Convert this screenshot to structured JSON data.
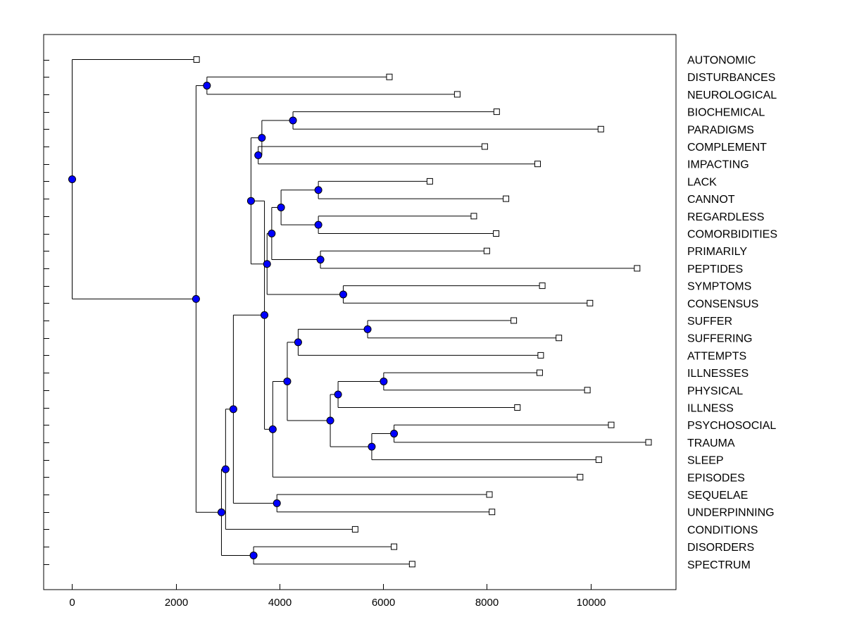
{
  "chart_data": {
    "type": "dendrogram",
    "title": "",
    "xlabel": "",
    "ylabel": "",
    "xlim": [
      -550,
      11650
    ],
    "xticks": [
      0,
      2000,
      4000,
      6000,
      8000,
      10000
    ],
    "grid": false,
    "leaves": [
      {
        "label": "AUTONOMIC",
        "x": 2400
      },
      {
        "label": "DISTURBANCES",
        "x": 6120
      },
      {
        "label": "NEUROLOGICAL",
        "x": 7430
      },
      {
        "label": "BIOCHEMICAL",
        "x": 8190
      },
      {
        "label": "PARADIGMS",
        "x": 10200
      },
      {
        "label": "COMPLEMENT",
        "x": 7960
      },
      {
        "label": "IMPACTING",
        "x": 8980
      },
      {
        "label": "LACK",
        "x": 6900
      },
      {
        "label": "CANNOT",
        "x": 8370
      },
      {
        "label": "REGARDLESS",
        "x": 7750
      },
      {
        "label": "COMORBIDITIES",
        "x": 8180
      },
      {
        "label": "PRIMARILY",
        "x": 8000
      },
      {
        "label": "PEPTIDES",
        "x": 10900
      },
      {
        "label": "SYMPTOMS",
        "x": 9070
      },
      {
        "label": "CONSENSUS",
        "x": 9990
      },
      {
        "label": "SUFFER",
        "x": 8520
      },
      {
        "label": "SUFFERING",
        "x": 9390
      },
      {
        "label": "ATTEMPTS",
        "x": 9040
      },
      {
        "label": "ILLNESSES",
        "x": 9020
      },
      {
        "label": "PHYSICAL",
        "x": 9940
      },
      {
        "label": "ILLNESS",
        "x": 8590
      },
      {
        "label": "PSYCHOSOCIAL",
        "x": 10400
      },
      {
        "label": "TRAUMA",
        "x": 11120
      },
      {
        "label": "SLEEP",
        "x": 10160
      },
      {
        "label": "EPISODES",
        "x": 9800
      },
      {
        "label": "SEQUELAE",
        "x": 8050
      },
      {
        "label": "UNDERPINNING",
        "x": 8100
      },
      {
        "label": "CONDITIONS",
        "x": 5460
      },
      {
        "label": "DISORDERS",
        "x": 6210
      },
      {
        "label": "SPECTRUM",
        "x": 6560
      }
    ],
    "merges": [
      {
        "id": "n1",
        "x": 2600,
        "children": [
          "L1",
          "L2"
        ]
      },
      {
        "id": "n2",
        "x": 4260,
        "children": [
          "L3",
          "L4"
        ]
      },
      {
        "id": "n3",
        "x": 3590,
        "children": [
          "L5",
          "L6"
        ]
      },
      {
        "id": "n4",
        "x": 3660,
        "children": [
          "n2",
          "n3"
        ]
      },
      {
        "id": "n5",
        "x": 4750,
        "children": [
          "L7",
          "L8"
        ]
      },
      {
        "id": "n6",
        "x": 4750,
        "children": [
          "L9",
          "L10"
        ]
      },
      {
        "id": "n7",
        "x": 4030,
        "children": [
          "n5",
          "n6"
        ]
      },
      {
        "id": "n8",
        "x": 4790,
        "children": [
          "L11",
          "L12"
        ]
      },
      {
        "id": "n9",
        "x": 3850,
        "children": [
          "n7",
          "n8"
        ]
      },
      {
        "id": "n10",
        "x": 5230,
        "children": [
          "L13",
          "L14"
        ]
      },
      {
        "id": "n11",
        "x": 3760,
        "children": [
          "n9",
          "n10"
        ]
      },
      {
        "id": "n12",
        "x": 3450,
        "children": [
          "n4",
          "n11"
        ]
      },
      {
        "id": "n13",
        "x": 5700,
        "children": [
          "L15",
          "L16"
        ]
      },
      {
        "id": "n14",
        "x": 4360,
        "children": [
          "n13",
          "L17"
        ]
      },
      {
        "id": "n15",
        "x": 6010,
        "children": [
          "L18",
          "L19"
        ]
      },
      {
        "id": "n16",
        "x": 5130,
        "children": [
          "n15",
          "L20"
        ]
      },
      {
        "id": "n17",
        "x": 6210,
        "children": [
          "L21",
          "L22"
        ]
      },
      {
        "id": "n18",
        "x": 5780,
        "children": [
          "n17",
          "L23"
        ]
      },
      {
        "id": "n19",
        "x": 4980,
        "children": [
          "n16",
          "n18"
        ]
      },
      {
        "id": "n20",
        "x": 4150,
        "children": [
          "n14",
          "n19"
        ]
      },
      {
        "id": "n21",
        "x": 3870,
        "children": [
          "n20",
          "L24"
        ]
      },
      {
        "id": "n22",
        "x": 3710,
        "children": [
          "n12",
          "n21"
        ]
      },
      {
        "id": "n23",
        "x": 3950,
        "children": [
          "L25",
          "L26"
        ]
      },
      {
        "id": "n24",
        "x": 3110,
        "children": [
          "n22",
          "n23"
        ]
      },
      {
        "id": "n25",
        "x": 2960,
        "children": [
          "n24",
          "L27"
        ]
      },
      {
        "id": "n26",
        "x": 3500,
        "children": [
          "L28",
          "L29"
        ]
      },
      {
        "id": "n27",
        "x": 2880,
        "children": [
          "n25",
          "n26"
        ]
      },
      {
        "id": "n28",
        "x": 2390,
        "children": [
          "n1",
          "n27"
        ]
      },
      {
        "id": "n29",
        "x": 0,
        "children": [
          "L0",
          "n28"
        ]
      }
    ],
    "colors": {
      "node_fill": "#0000ff",
      "line": "#000000",
      "leaf_fill": "#ffffff",
      "background": "#ffffff"
    }
  }
}
